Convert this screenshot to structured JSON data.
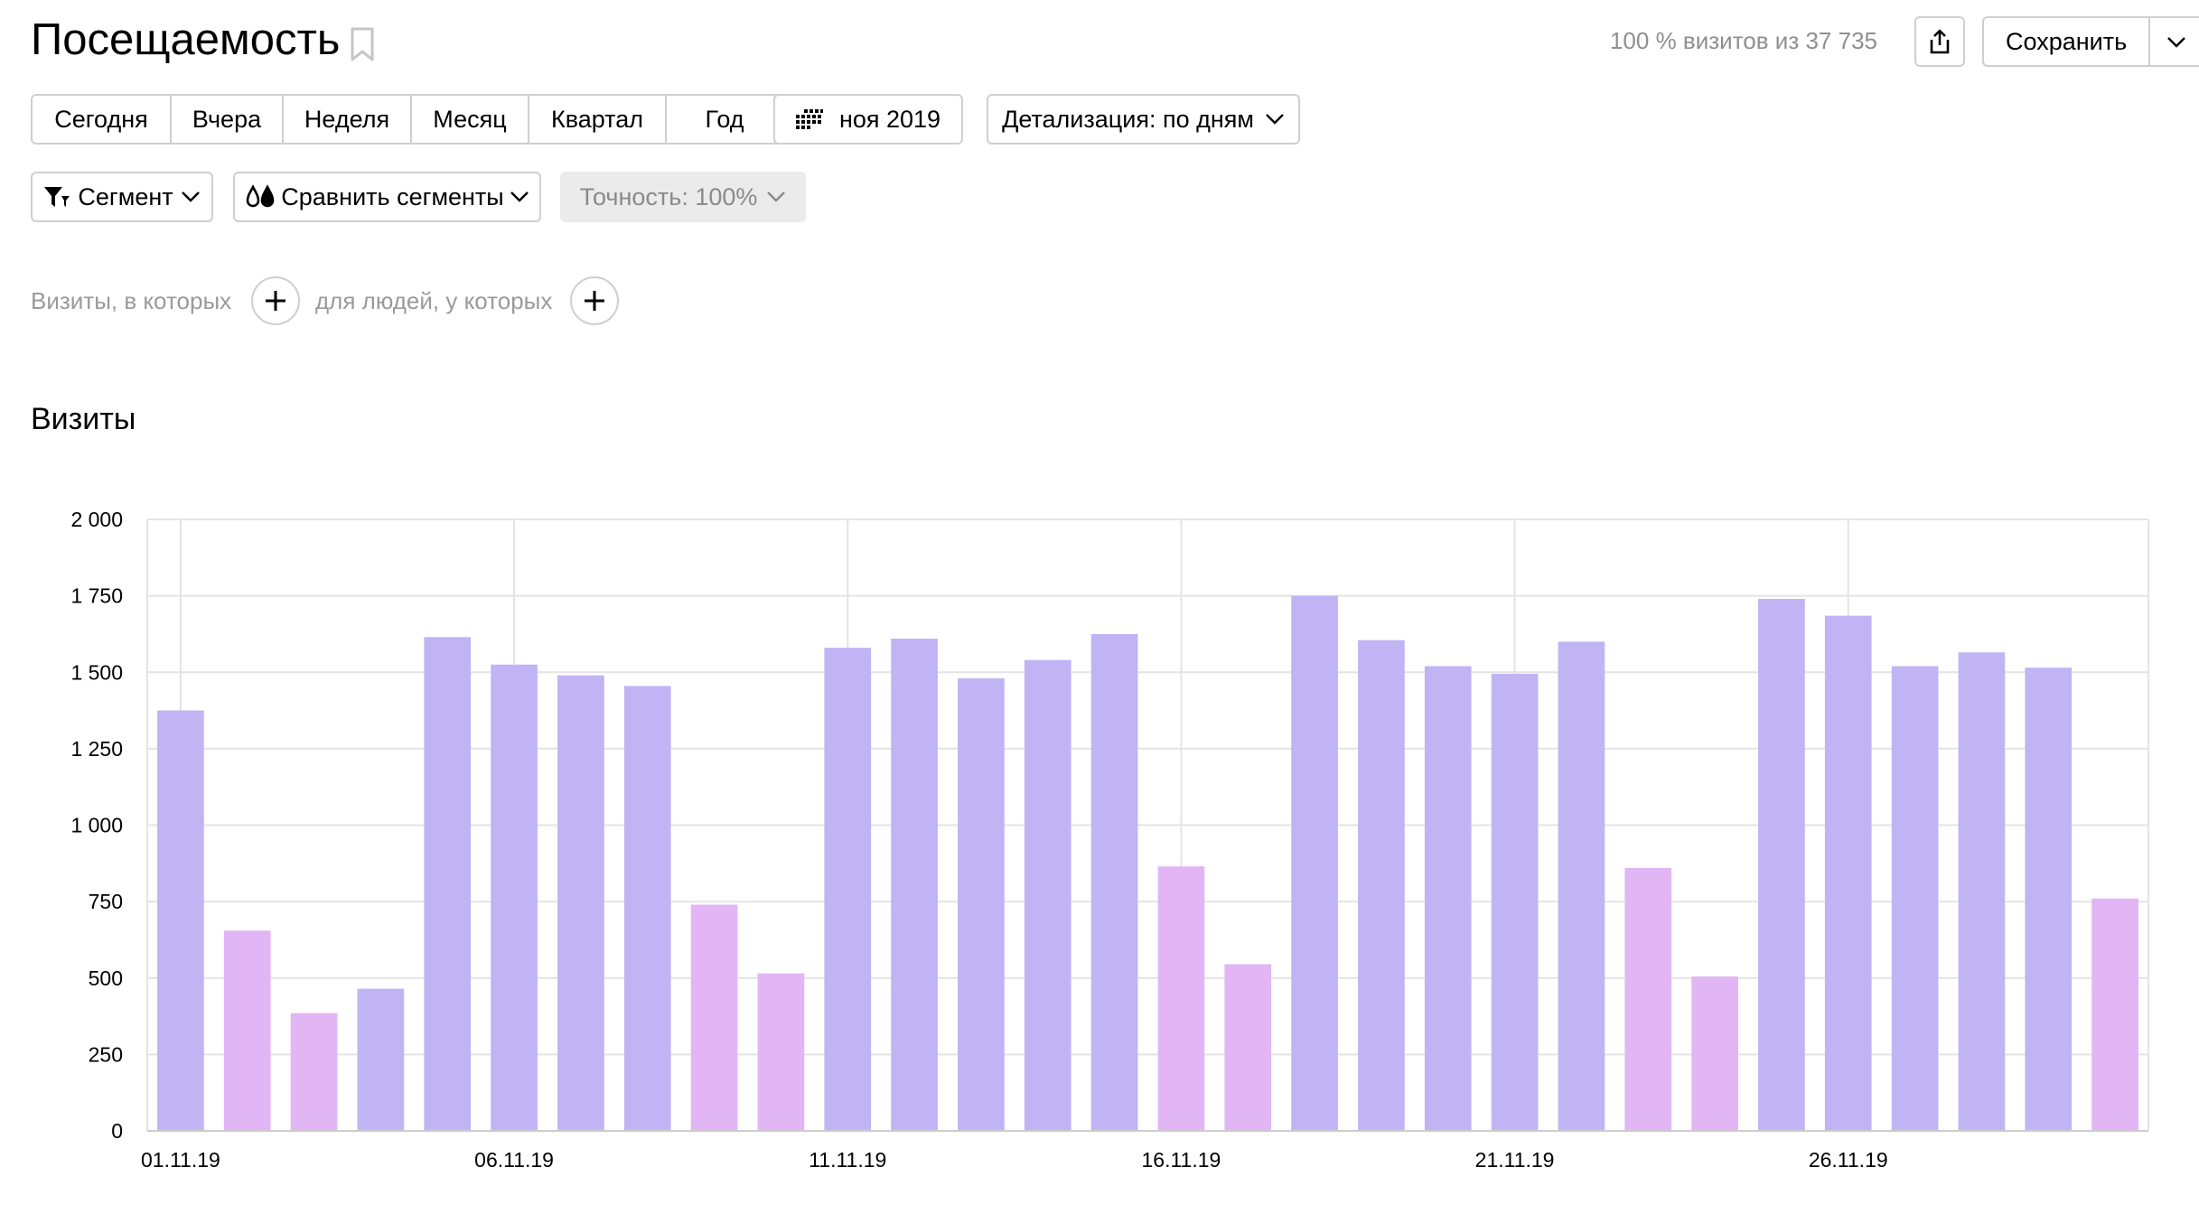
{
  "header": {
    "title": "Посещаемость",
    "visits_summary": "100 % визитов из 37 735",
    "save_label": "Сохранить"
  },
  "period": {
    "items": [
      {
        "label": "Сегодня"
      },
      {
        "label": "Вчера"
      },
      {
        "label": "Неделя"
      },
      {
        "label": "Месяц"
      },
      {
        "label": "Квартал"
      },
      {
        "label": "Год"
      }
    ]
  },
  "date_picker": {
    "label": "ноя 2019"
  },
  "detail": {
    "label": "Детализация: по дням"
  },
  "segment": {
    "label": "Сегмент"
  },
  "compare": {
    "label": "Сравнить сегменты"
  },
  "accuracy": {
    "label": "Точность: 100%"
  },
  "filters": {
    "visits_label": "Визиты, в которых",
    "people_label": "для людей, у которых"
  },
  "chart_section": {
    "title": "Визиты"
  },
  "colors": {
    "weekday_bar": "#c1b4f4",
    "weekend_bar": "#e2b6f4",
    "holiday_label": "#c00000",
    "grid": "#e4e4e4"
  },
  "chart_data": {
    "type": "bar",
    "categories": [
      "01.11.19",
      "02.11.19",
      "03.11.19",
      "04.11.19",
      "05.11.19",
      "06.11.19",
      "07.11.19",
      "08.11.19",
      "09.11.19",
      "10.11.19",
      "11.11.19",
      "12.11.19",
      "13.11.19",
      "14.11.19",
      "15.11.19",
      "16.11.19",
      "17.11.19",
      "18.11.19",
      "19.11.19",
      "20.11.19",
      "21.11.19",
      "22.11.19",
      "23.11.19",
      "24.11.19",
      "25.11.19",
      "26.11.19",
      "27.11.19",
      "28.11.19",
      "29.11.19",
      "30.11.19"
    ],
    "values": [
      1375,
      655,
      385,
      465,
      1615,
      1525,
      1490,
      1455,
      740,
      515,
      1580,
      1610,
      1480,
      1540,
      1625,
      865,
      545,
      1750,
      1605,
      1520,
      1495,
      1600,
      860,
      505,
      1740,
      1685,
      1520,
      1565,
      1515,
      760
    ],
    "weekend": [
      false,
      true,
      true,
      false,
      false,
      false,
      false,
      false,
      true,
      true,
      false,
      false,
      false,
      false,
      false,
      true,
      true,
      false,
      false,
      false,
      false,
      false,
      true,
      true,
      false,
      false,
      false,
      false,
      false,
      true
    ],
    "x_tick_labels": [
      "01.11.19",
      "06.11.19",
      "11.11.19",
      "16.11.19",
      "21.11.19",
      "26.11.19"
    ],
    "x_tick_highlight": [
      false,
      false,
      false,
      true,
      false,
      false
    ],
    "y_tick_labels": [
      "0",
      "250",
      "500",
      "750",
      "1 000",
      "1 250",
      "1 500",
      "1 750",
      "2 000"
    ],
    "ylim": [
      0,
      2000
    ],
    "grid": true
  }
}
